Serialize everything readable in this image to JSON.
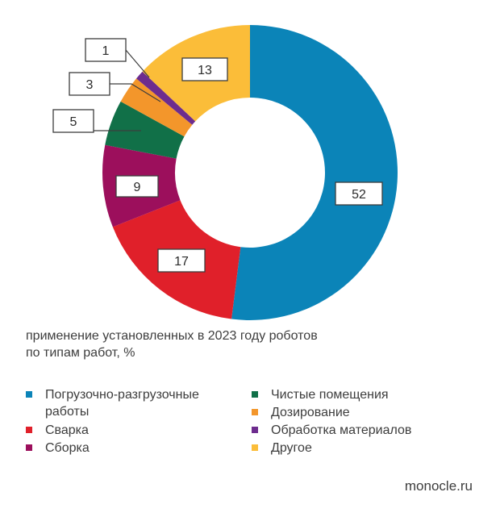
{
  "chart_data": {
    "type": "donut",
    "title": "применение установленных в 2023 году роботов по типам работ, %",
    "unit": "%",
    "categories": [
      "Погрузочно-разгрузочные работы",
      "Сварка",
      "Сборка",
      "Чистые помещения",
      "Дозирование",
      "Обработка материалов",
      "Другое"
    ],
    "values": [
      52,
      17,
      9,
      5,
      3,
      1,
      13
    ],
    "colors": [
      "#0b84b8",
      "#e0202a",
      "#9c0f5c",
      "#117048",
      "#f3962b",
      "#6d2c8e",
      "#fbbd39"
    ],
    "data_labels": [
      "52",
      "17",
      "9",
      "5",
      "3",
      "1",
      "13"
    ],
    "legend_placement": "bottom"
  },
  "caption": {
    "line1": "применение установленных в 2023 году роботов",
    "line2": "по типам работ, %"
  },
  "legend": [
    {
      "label": "Погрузочно-разгрузочные",
      "label2": "работы",
      "color": "#0b84b8"
    },
    {
      "label": "Сварка",
      "color": "#e0202a"
    },
    {
      "label": "Сборка",
      "color": "#9c0f5c"
    },
    {
      "label": "Чистые помещения",
      "color": "#117048"
    },
    {
      "label": "Дозирование",
      "color": "#f3962b"
    },
    {
      "label": "Обработка материалов",
      "color": "#6d2c8e"
    },
    {
      "label": "Другое",
      "color": "#fbbd39"
    }
  ],
  "source": "monocle.ru"
}
